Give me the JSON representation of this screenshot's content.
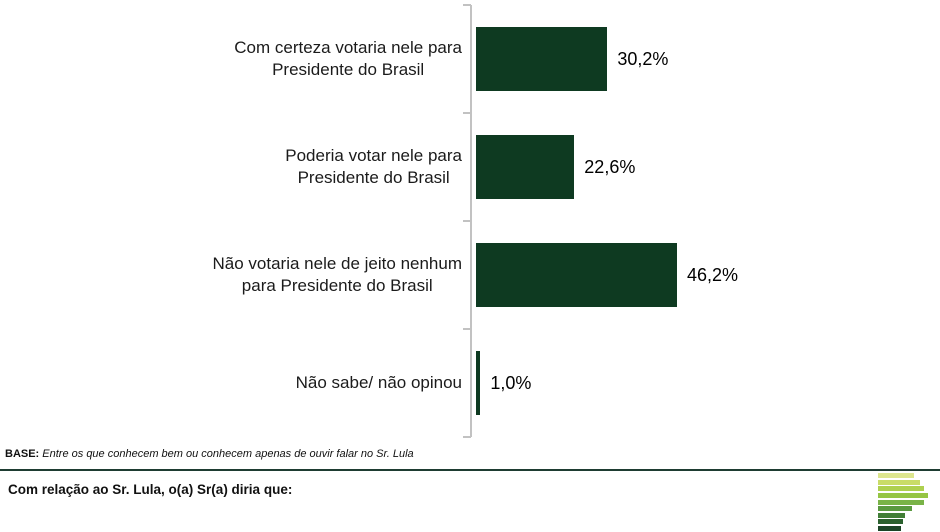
{
  "chart_data": {
    "type": "bar",
    "orientation": "horizontal",
    "title": "",
    "xlabel": "",
    "ylabel": "",
    "xlim": [
      0,
      50
    ],
    "grid": false,
    "legend": false,
    "categories": [
      "Com certeza votaria nele para\nPresidente do Brasil",
      "Poderia votar nele para\nPresidente do Brasil",
      "Não votaria nele de jeito nenhum\npara Presidente do Brasil",
      "Não sabe/ não opinou"
    ],
    "values": [
      30.2,
      22.6,
      46.2,
      1.0
    ],
    "value_labels": [
      "30,2%",
      "22,6%",
      "46,2%",
      "1,0%"
    ],
    "bar_color": "#0e3a21",
    "axis_color": "#c2c2c2"
  },
  "footer": {
    "base_prefix": "BASE:",
    "base_text": "Entre os que conhecem bem ou conhecem apenas de ouvir falar no Sr. Lula",
    "question": "Com relação ao Sr. Lula, o(a) Sr(a) diria que:",
    "separator_color": "#1e3c32"
  },
  "logo": {
    "description": "stacked green stripes forming a P shape",
    "stripe_colors": [
      "#dce68e",
      "#c9dc67",
      "#aed04f",
      "#95c544",
      "#79b347",
      "#5a9940",
      "#417e36",
      "#2b612e",
      "#1c4527"
    ]
  }
}
